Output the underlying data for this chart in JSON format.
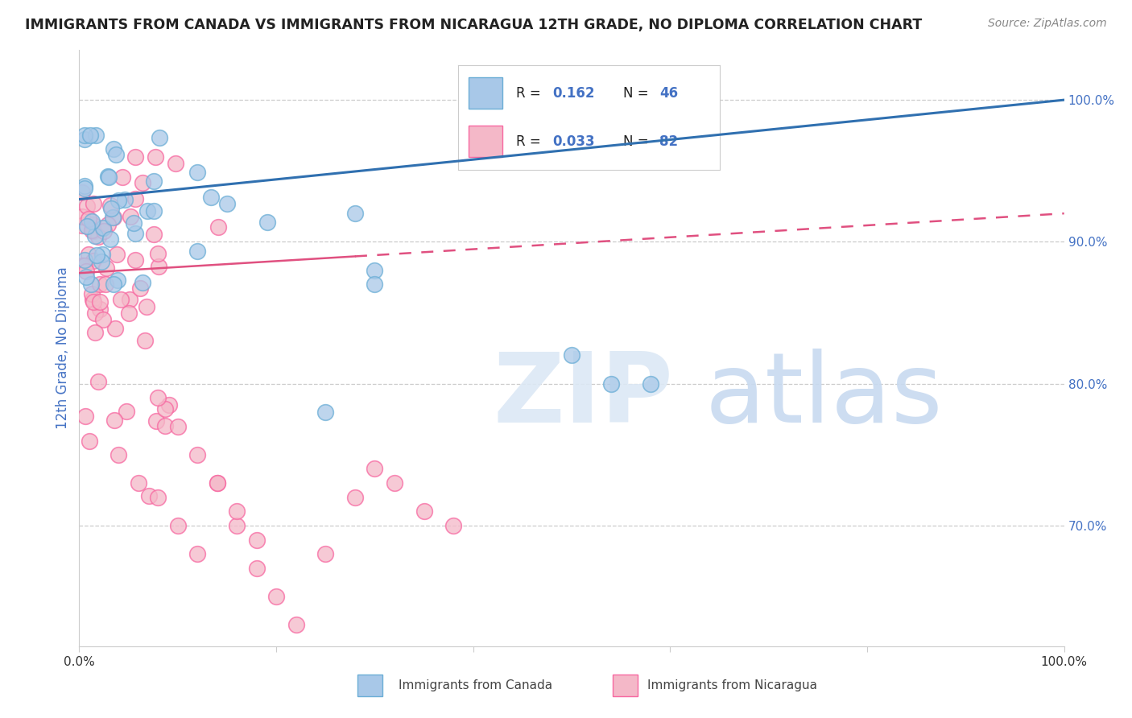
{
  "title": "IMMIGRANTS FROM CANADA VS IMMIGRANTS FROM NICARAGUA 12TH GRADE, NO DIPLOMA CORRELATION CHART",
  "source": "Source: ZipAtlas.com",
  "ylabel": "12th Grade, No Diploma",
  "ylabel_right_ticks": [
    "70.0%",
    "80.0%",
    "90.0%",
    "100.0%"
  ],
  "ylabel_right_vals": [
    0.7,
    0.8,
    0.9,
    1.0
  ],
  "xlim": [
    0.0,
    1.0
  ],
  "ylim": [
    0.615,
    1.035
  ],
  "color_canada": "#a8c8e8",
  "color_canada_edge": "#6baed6",
  "color_nicaragua": "#f4b8c8",
  "color_nicaragua_edge": "#f768a1",
  "color_canada_line": "#3070b0",
  "color_nicaragua_line": "#e05080",
  "canada_line_start_y": 0.93,
  "canada_line_end_y": 1.0,
  "nicaragua_line_start_y": 0.878,
  "nicaragua_line_end_y": 0.92,
  "watermark_zip": "ZIP",
  "watermark_atlas": "atlas",
  "legend_R_canada": "0.162",
  "legend_N_canada": "46",
  "legend_R_nicaragua": "0.033",
  "legend_N_nicaragua": "82"
}
